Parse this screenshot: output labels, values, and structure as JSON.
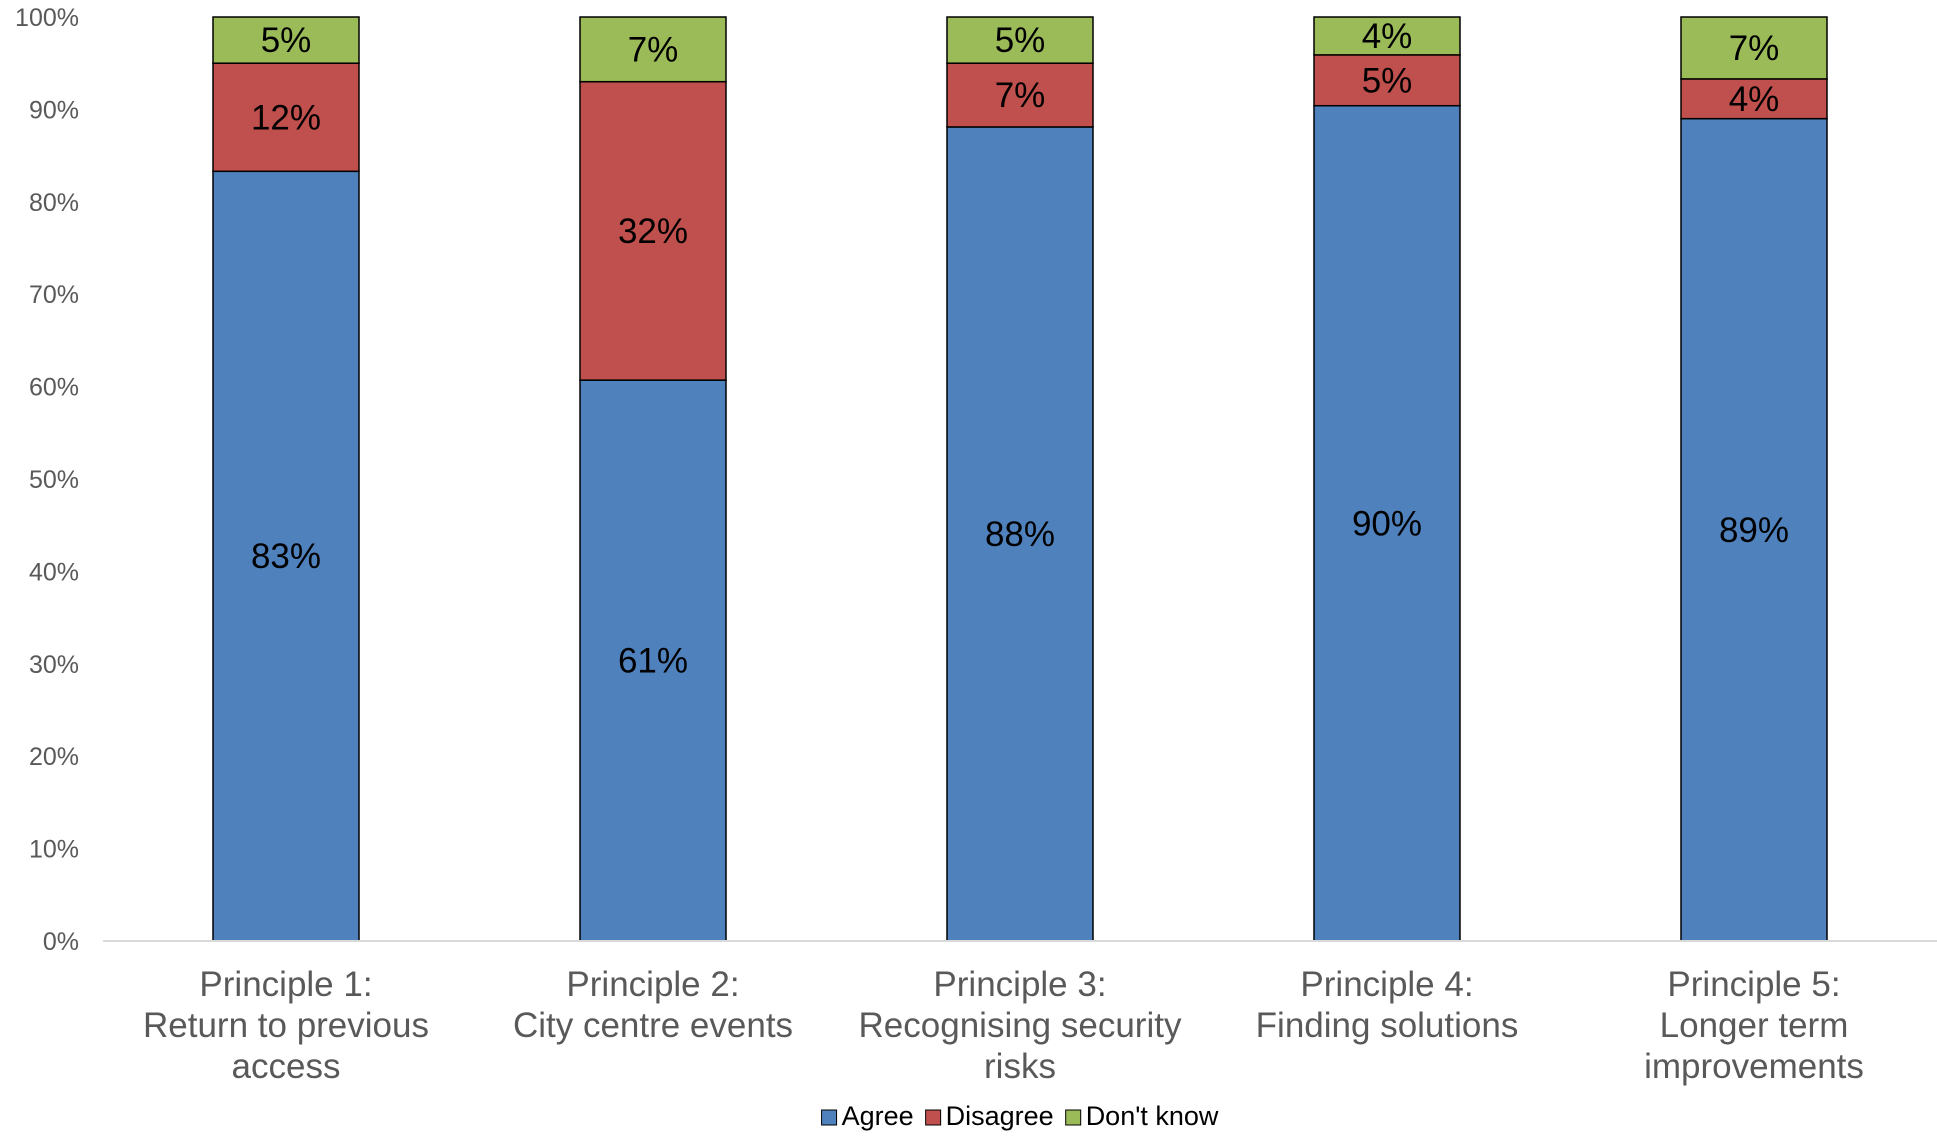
{
  "chart_data": {
    "type": "bar",
    "stacked": true,
    "percent_stacked": true,
    "categories": [
      [
        "Principle 1:",
        "Return to previous",
        "access"
      ],
      [
        "Principle 2:",
        "City centre events"
      ],
      [
        "Principle 3:",
        "Recognising security",
        "risks"
      ],
      [
        "Principle 4:",
        "Finding solutions"
      ],
      [
        "Principle 5:",
        "Longer term",
        "improvements"
      ]
    ],
    "series": [
      {
        "name": "Agree",
        "color": "#4f81bd",
        "values": [
          83.3,
          60.7,
          88.1,
          90.4,
          89.0
        ],
        "labels": [
          "83%",
          "61%",
          "88%",
          "90%",
          "89%"
        ]
      },
      {
        "name": "Disagree",
        "color": "#c0504d",
        "values": [
          11.7,
          32.3,
          6.9,
          5.5,
          4.3
        ],
        "labels": [
          "12%",
          "32%",
          "7%",
          "5%",
          "4%"
        ]
      },
      {
        "name": "Don't know",
        "color": "#9bbb59",
        "values": [
          5.0,
          7.0,
          5.0,
          4.1,
          6.7
        ],
        "labels": [
          "5%",
          "7%",
          "5%",
          "4%",
          "7%"
        ]
      }
    ],
    "y_ticks": [
      "0%",
      "10%",
      "20%",
      "30%",
      "40%",
      "50%",
      "60%",
      "70%",
      "80%",
      "90%",
      "100%"
    ],
    "ylim": [
      0,
      100
    ],
    "grid": false,
    "legend_position": "bottom",
    "title": "",
    "xlabel": "",
    "ylabel": ""
  }
}
